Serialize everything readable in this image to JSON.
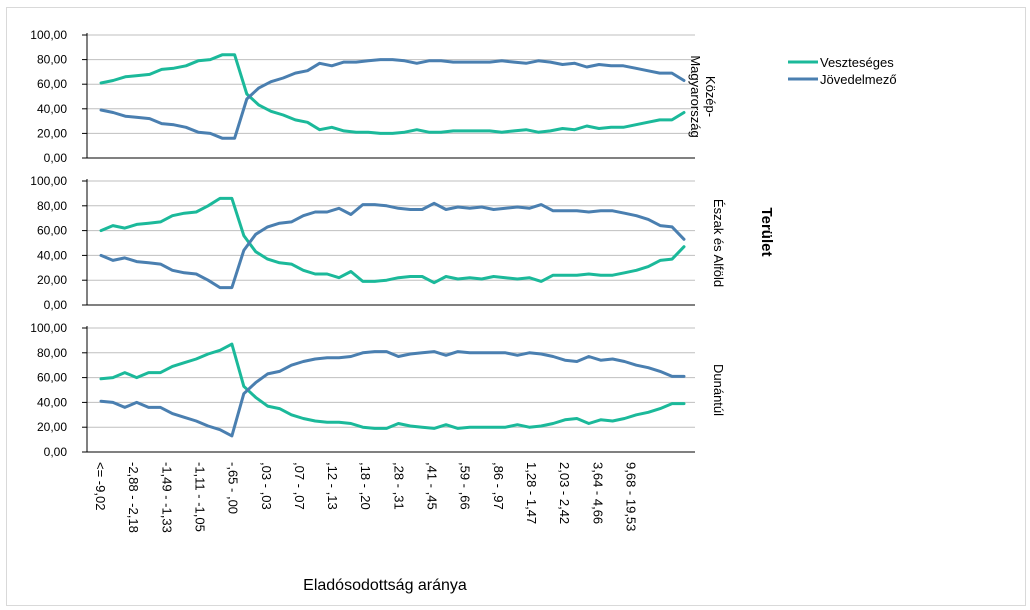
{
  "chart_data": {
    "type": "line",
    "xlabel": "Eladósodottság aránya",
    "facet_title": "Terület",
    "ylim": [
      0,
      100
    ],
    "yticks": [
      "0,00",
      "20,00",
      "40,00",
      "60,00",
      "80,00",
      "100,00"
    ],
    "x_tick_labels": [
      "<= -9,02",
      "-2,88 - -2,18",
      "-1,49 - -1,33",
      "-1,11 - -1,05",
      "-,65 - ,00",
      ",03 - ,03",
      ",07 - ,07",
      ",12 - ,13",
      ",18 - ,20",
      ",28 - ,31",
      ",41 - ,45",
      ",59 - ,66",
      ",86 - ,97",
      "1,28 - 1,47",
      "2,03 - 2,42",
      "3,64 - 4,66",
      "9,68 - 19,53"
    ],
    "legend": [
      {
        "name": "Veszteséges",
        "color": "#1bb99a"
      },
      {
        "name": "Jövedelmező",
        "color": "#4a7fb0"
      }
    ],
    "grid": "horizontal",
    "legend_position": "top-right",
    "panels": [
      {
        "label": [
          "Közép-",
          "Magyarország"
        ],
        "series": [
          {
            "name": "Veszteséges",
            "values": [
              61,
              63,
              66,
              67,
              68,
              72,
              73,
              75,
              79,
              80,
              84,
              84,
              52,
              43,
              38,
              35,
              31,
              29,
              23,
              25,
              22,
              21,
              21,
              20,
              20,
              21,
              23,
              21,
              21,
              22,
              22,
              22,
              22,
              21,
              22,
              23,
              21,
              22,
              24,
              23,
              26,
              24,
              25,
              25,
              27,
              29,
              31,
              31,
              37
            ]
          },
          {
            "name": "Jövedelmező",
            "values": [
              39,
              37,
              34,
              33,
              32,
              28,
              27,
              25,
              21,
              20,
              16,
              16,
              48,
              57,
              62,
              65,
              69,
              71,
              77,
              75,
              78,
              78,
              79,
              80,
              80,
              79,
              77,
              79,
              79,
              78,
              78,
              78,
              78,
              79,
              78,
              77,
              79,
              78,
              76,
              77,
              74,
              76,
              75,
              75,
              73,
              71,
              69,
              69,
              63
            ]
          }
        ]
      },
      {
        "label": [
          "Észak és Alföld"
        ],
        "series": [
          {
            "name": "Veszteséges",
            "values": [
              60,
              64,
              62,
              65,
              66,
              67,
              72,
              74,
              75,
              80,
              86,
              86,
              56,
              43,
              37,
              34,
              33,
              28,
              25,
              25,
              22,
              27,
              19,
              19,
              20,
              22,
              23,
              23,
              18,
              23,
              21,
              22,
              21,
              23,
              22,
              21,
              22,
              19,
              24,
              24,
              24,
              25,
              24,
              24,
              26,
              28,
              31,
              36,
              37,
              47
            ]
          },
          {
            "name": "Jövedelmező",
            "values": [
              40,
              36,
              38,
              35,
              34,
              33,
              28,
              26,
              25,
              20,
              14,
              14,
              44,
              57,
              63,
              66,
              67,
              72,
              75,
              75,
              78,
              73,
              81,
              81,
              80,
              78,
              77,
              77,
              82,
              77,
              79,
              78,
              79,
              77,
              78,
              79,
              78,
              81,
              76,
              76,
              76,
              75,
              76,
              76,
              74,
              72,
              69,
              64,
              63,
              53
            ]
          }
        ]
      },
      {
        "label": [
          "Dunántúl"
        ],
        "series": [
          {
            "name": "Veszteséges",
            "values": [
              59,
              60,
              64,
              60,
              64,
              64,
              69,
              72,
              75,
              79,
              82,
              87,
              53,
              44,
              37,
              35,
              30,
              27,
              25,
              24,
              24,
              23,
              20,
              19,
              19,
              23,
              21,
              20,
              19,
              22,
              19,
              20,
              20,
              20,
              20,
              22,
              20,
              21,
              23,
              26,
              27,
              23,
              26,
              25,
              27,
              30,
              32,
              35,
              39,
              39
            ]
          },
          {
            "name": "Jövedelmező",
            "values": [
              41,
              40,
              36,
              40,
              36,
              36,
              31,
              28,
              25,
              21,
              18,
              13,
              47,
              56,
              63,
              65,
              70,
              73,
              75,
              76,
              76,
              77,
              80,
              81,
              81,
              77,
              79,
              80,
              81,
              78,
              81,
              80,
              80,
              80,
              80,
              78,
              80,
              79,
              77,
              74,
              73,
              77,
              74,
              75,
              73,
              70,
              68,
              65,
              61,
              61
            ]
          }
        ]
      }
    ]
  }
}
